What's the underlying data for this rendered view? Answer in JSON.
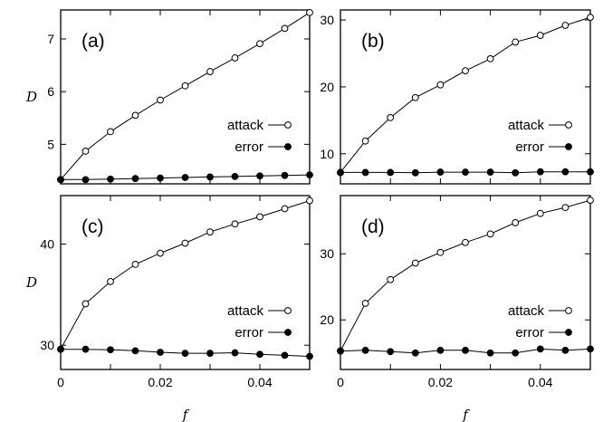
{
  "chart_data": [
    {
      "type": "line",
      "panel": "(a)",
      "xlabel": "",
      "ylabel": "D",
      "xlim": [
        0,
        0.05
      ],
      "ylim": [
        4.25,
        7.55
      ],
      "yticks": [
        "5",
        "6",
        "7"
      ],
      "ytick_values": [
        5,
        6,
        7
      ],
      "xticks": [],
      "xtick_values": [],
      "legend_position": "right",
      "x": [
        0,
        0.005,
        0.01,
        0.015,
        0.02,
        0.025,
        0.03,
        0.035,
        0.04,
        0.045,
        0.05
      ],
      "series": [
        {
          "name": "attack",
          "marker": "open-circle",
          "values": [
            4.33,
            4.87,
            5.24,
            5.55,
            5.84,
            6.11,
            6.38,
            6.64,
            6.91,
            7.2,
            7.5
          ]
        },
        {
          "name": "error",
          "marker": "filled-circle",
          "values": [
            4.33,
            4.33,
            4.34,
            4.35,
            4.36,
            4.37,
            4.38,
            4.39,
            4.4,
            4.41,
            4.42
          ]
        }
      ]
    },
    {
      "type": "line",
      "panel": "(b)",
      "xlabel": "",
      "ylabel": "",
      "xlim": [
        0,
        0.05
      ],
      "ylim": [
        5.5,
        31.5
      ],
      "yticks": [
        "10",
        "20",
        "30"
      ],
      "ytick_values": [
        10,
        20,
        30
      ],
      "xticks": [],
      "xtick_values": [],
      "legend_position": "right",
      "x": [
        0,
        0.005,
        0.01,
        0.015,
        0.02,
        0.025,
        0.03,
        0.035,
        0.04,
        0.045,
        0.05
      ],
      "series": [
        {
          "name": "attack",
          "marker": "open-circle",
          "values": [
            7.2,
            11.9,
            15.4,
            18.4,
            20.3,
            22.4,
            24.2,
            26.7,
            27.7,
            29.2,
            30.4
          ]
        },
        {
          "name": "error",
          "marker": "filled-circle",
          "values": [
            7.2,
            7.2,
            7.2,
            7.15,
            7.25,
            7.25,
            7.25,
            7.15,
            7.3,
            7.3,
            7.3
          ]
        }
      ]
    },
    {
      "type": "line",
      "panel": "(c)",
      "xlabel": "f",
      "ylabel": "D",
      "xlim": [
        0,
        0.05
      ],
      "ylim": [
        27.6,
        44.8
      ],
      "yticks": [
        "30",
        "40"
      ],
      "ytick_values": [
        30,
        40
      ],
      "xticks": [
        "0",
        "0.02",
        "0.04"
      ],
      "xtick_values": [
        0,
        0.02,
        0.04
      ],
      "legend_position": "right",
      "x": [
        0,
        0.005,
        0.01,
        0.015,
        0.02,
        0.025,
        0.03,
        0.035,
        0.04,
        0.045,
        0.05
      ],
      "series": [
        {
          "name": "attack",
          "marker": "open-circle",
          "values": [
            29.6,
            34.1,
            36.3,
            38.0,
            39.1,
            40.1,
            41.2,
            42.0,
            42.7,
            43.5,
            44.3
          ]
        },
        {
          "name": "error",
          "marker": "filled-circle",
          "values": [
            29.6,
            29.6,
            29.55,
            29.45,
            29.3,
            29.2,
            29.2,
            29.25,
            29.1,
            29.0,
            28.9
          ]
        }
      ]
    },
    {
      "type": "line",
      "panel": "(d)",
      "xlabel": "f",
      "ylabel": "",
      "xlim": [
        0,
        0.05
      ],
      "ylim": [
        12.5,
        38.8
      ],
      "yticks": [
        "20",
        "30"
      ],
      "ytick_values": [
        20,
        30
      ],
      "xticks": [
        "0",
        "0.02",
        "0.04"
      ],
      "xtick_values": [
        0,
        0.02,
        0.04
      ],
      "legend_position": "right",
      "x": [
        0,
        0.005,
        0.01,
        0.015,
        0.02,
        0.025,
        0.03,
        0.035,
        0.04,
        0.045,
        0.05
      ],
      "series": [
        {
          "name": "attack",
          "marker": "open-circle",
          "values": [
            15.3,
            22.5,
            26.1,
            28.6,
            30.2,
            31.7,
            33.0,
            34.7,
            36.1,
            37.0,
            38.1
          ]
        },
        {
          "name": "error",
          "marker": "filled-circle",
          "values": [
            15.3,
            15.4,
            15.2,
            15.0,
            15.4,
            15.4,
            15.0,
            15.0,
            15.6,
            15.4,
            15.6
          ]
        }
      ]
    }
  ]
}
